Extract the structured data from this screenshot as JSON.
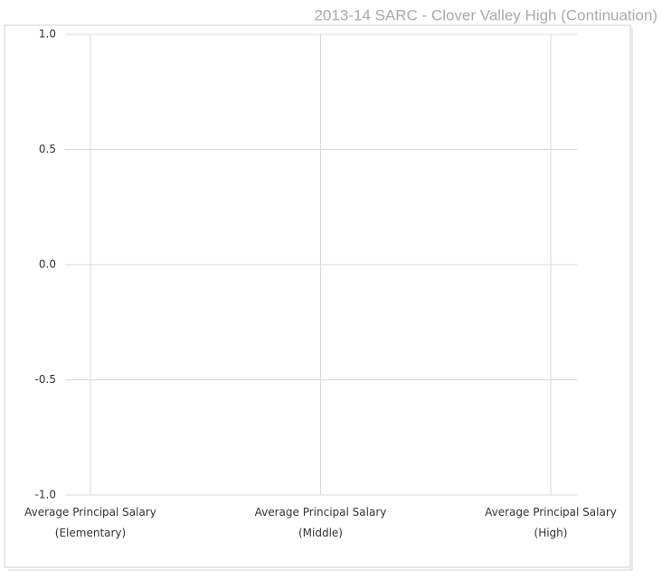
{
  "chart_data": {
    "type": "bar",
    "title": "2013-14 SARC - Clover Valley High (Continuation)",
    "categories": [
      "Average Principal Salary (Elementary)",
      "Average Principal Salary (Middle)",
      "Average Principal Salary (High)"
    ],
    "ylim": [
      -1,
      1
    ],
    "yticks": [
      {
        "value": -1,
        "label": "-1.0"
      },
      {
        "value": -0.5,
        "label": "-0.5"
      },
      {
        "value": 0,
        "label": "0.0"
      },
      {
        "value": 0.5,
        "label": "0.5"
      },
      {
        "value": 1,
        "label": "1.0"
      }
    ],
    "grid": true
  }
}
